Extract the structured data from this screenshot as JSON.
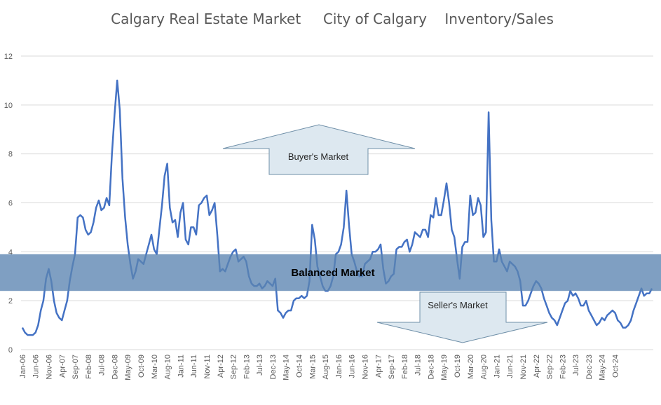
{
  "chart_data": {
    "type": "line",
    "title": "Calgary Real Estate Market     City of Calgary    Inventory/Sales",
    "xlabel": "",
    "ylabel": "",
    "ylim": [
      0,
      12
    ],
    "yticks": [
      0,
      2,
      4,
      6,
      8,
      10,
      12
    ],
    "grid": true,
    "x_tick_labels": [
      "Jan-06",
      "Jun-06",
      "Nov-06",
      "Apr-07",
      "Sep-07",
      "Feb-08",
      "Jul-08",
      "Dec-08",
      "May-09",
      "Oct-09",
      "Mar-10",
      "Aug-10",
      "Jan-11",
      "Jun-11",
      "Nov-11",
      "Apr-12",
      "Sep-12",
      "Feb-13",
      "Jul-13",
      "Dec-13",
      "May-14",
      "Oct-14",
      "Mar-15",
      "Aug-15",
      "Jan-16",
      "Jun-16",
      "Nov-16",
      "Apr-17",
      "Sep-17",
      "Feb-18",
      "Jul-18",
      "Dec-18",
      "May-19",
      "Oct-19",
      "Mar-20",
      "Aug-20",
      "Jan-21",
      "Jun-21",
      "Nov-21",
      "Apr-22",
      "Sep-22",
      "Feb-23",
      "Jul-23",
      "Dec-23",
      "May-24",
      "Oct-24"
    ],
    "start_month": "Jan-06",
    "series": [
      {
        "name": "",
        "color": "#4472c4",
        "values": [
          0.9,
          0.7,
          0.6,
          0.6,
          0.6,
          0.7,
          1.0,
          1.6,
          2.0,
          2.9,
          3.3,
          2.8,
          2.0,
          1.5,
          1.3,
          1.2,
          1.6,
          2.0,
          2.8,
          3.4,
          3.9,
          5.4,
          5.5,
          5.4,
          4.9,
          4.7,
          4.8,
          5.2,
          5.8,
          6.1,
          5.7,
          5.8,
          6.2,
          5.9,
          8.0,
          9.6,
          11.0,
          9.8,
          7.0,
          5.4,
          4.3,
          3.5,
          2.9,
          3.2,
          3.7,
          3.6,
          3.5,
          3.9,
          4.3,
          4.7,
          4.1,
          3.9,
          4.9,
          5.9,
          7.1,
          7.6,
          5.8,
          5.2,
          5.3,
          4.6,
          5.6,
          6.0,
          4.5,
          4.3,
          5.0,
          5.0,
          4.7,
          5.9,
          6.0,
          6.2,
          6.3,
          5.5,
          5.7,
          6.0,
          4.7,
          3.2,
          3.3,
          3.2,
          3.5,
          3.8,
          4.0,
          4.1,
          3.6,
          3.7,
          3.8,
          3.6,
          3.0,
          2.7,
          2.6,
          2.6,
          2.7,
          2.5,
          2.6,
          2.8,
          2.7,
          2.6,
          2.9,
          1.6,
          1.5,
          1.3,
          1.5,
          1.6,
          1.6,
          2.0,
          2.1,
          2.1,
          2.2,
          2.1,
          2.2,
          2.8,
          5.1,
          4.5,
          3.4,
          3.0,
          2.6,
          2.4,
          2.4,
          2.6,
          3.0,
          3.9,
          4.0,
          4.3,
          5.0,
          6.5,
          5.1,
          3.9,
          3.6,
          3.2,
          3.0,
          3.0,
          3.5,
          3.6,
          3.7,
          4.0,
          4.0,
          4.1,
          4.3,
          3.3,
          2.7,
          2.8,
          3.0,
          3.1,
          4.1,
          4.2,
          4.2,
          4.4,
          4.5,
          4.0,
          4.3,
          4.8,
          4.7,
          4.6,
          4.9,
          4.9,
          4.6,
          5.5,
          5.4,
          6.2,
          5.5,
          5.5,
          6.1,
          6.8,
          6.0,
          4.9,
          4.6,
          3.7,
          2.9,
          4.2,
          4.4,
          4.4,
          6.3,
          5.5,
          5.6,
          6.2,
          5.9,
          4.6,
          4.8,
          9.7,
          5.3,
          3.6,
          3.6,
          4.1,
          3.6,
          3.4,
          3.2,
          3.6,
          3.5,
          3.4,
          3.2,
          2.8,
          1.8,
          1.8,
          2.0,
          2.3,
          2.6,
          2.8,
          2.7,
          2.5,
          2.1,
          1.8,
          1.5,
          1.3,
          1.2,
          1.0,
          1.3,
          1.6,
          1.9,
          2.0,
          2.4,
          2.2,
          2.3,
          2.1,
          1.8,
          1.8,
          2.0,
          1.6,
          1.4,
          1.2,
          1.0,
          1.1,
          1.3,
          1.2,
          1.4,
          1.5,
          1.6,
          1.5,
          1.2,
          1.1,
          0.9,
          0.9,
          1.0,
          1.2,
          1.6,
          1.9,
          2.2,
          2.5,
          2.2,
          2.3,
          2.3,
          2.5
        ]
      }
    ],
    "annotations": {
      "band": {
        "label": "Balanced Market",
        "ymin": 2.4,
        "ymax": 3.9
      },
      "buyers": {
        "label": "Buyer's Market"
      },
      "sellers": {
        "label": "Seller's Market"
      }
    }
  }
}
